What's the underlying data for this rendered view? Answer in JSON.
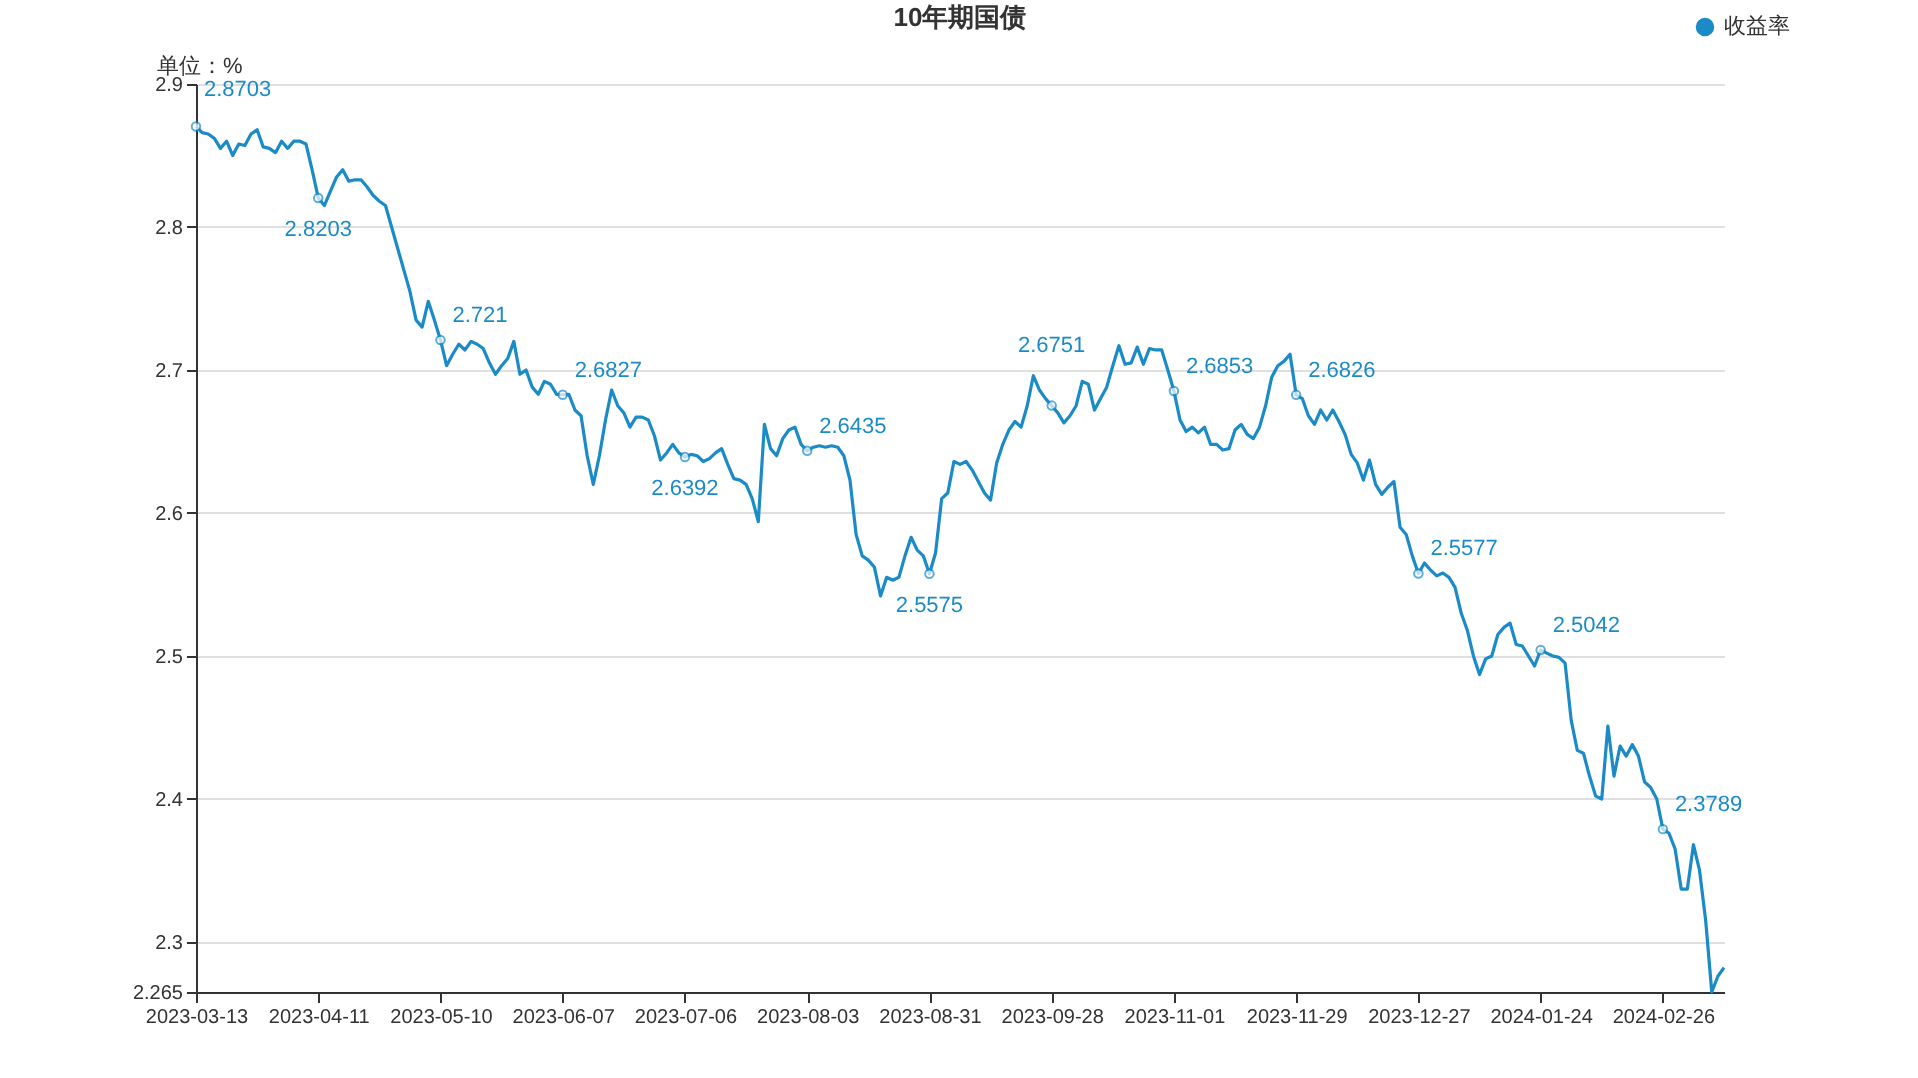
{
  "chart_data": {
    "type": "line",
    "title": "10年期国债",
    "ylabel": "单位：%",
    "categories": [
      "2023-03-13",
      null,
      null,
      null,
      null,
      null,
      null,
      null,
      null,
      null,
      null,
      null,
      null,
      null,
      null,
      null,
      null,
      null,
      null,
      null,
      "2023-04-11",
      null,
      null,
      null,
      null,
      null,
      null,
      null,
      null,
      null,
      null,
      null,
      null,
      null,
      null,
      null,
      null,
      null,
      null,
      null,
      "2023-05-10",
      null,
      null,
      null,
      null,
      null,
      null,
      null,
      null,
      null,
      null,
      null,
      null,
      null,
      null,
      null,
      null,
      null,
      null,
      null,
      "2023-06-07",
      null,
      null,
      null,
      null,
      null,
      null,
      null,
      null,
      null,
      null,
      null,
      null,
      null,
      null,
      null,
      null,
      null,
      null,
      null,
      "2023-07-06",
      null,
      null,
      null,
      null,
      null,
      null,
      null,
      null,
      null,
      null,
      null,
      null,
      null,
      null,
      null,
      null,
      null,
      null,
      null,
      "2023-08-03",
      null,
      null,
      null,
      null,
      null,
      null,
      null,
      null,
      null,
      null,
      null,
      null,
      null,
      null,
      null,
      null,
      null,
      null,
      null,
      "2023-08-31",
      null,
      null,
      null,
      null,
      null,
      null,
      null,
      null,
      null,
      null,
      null,
      null,
      null,
      null,
      null,
      null,
      null,
      null,
      null,
      "2023-09-28",
      null,
      null,
      null,
      null,
      null,
      null,
      null,
      null,
      null,
      null,
      null,
      null,
      null,
      null,
      null,
      null,
      null,
      null,
      null,
      "2023-11-01",
      null,
      null,
      null,
      null,
      null,
      null,
      null,
      null,
      null,
      null,
      null,
      null,
      null,
      null,
      null,
      null,
      null,
      null,
      null,
      "2023-11-29",
      null,
      null,
      null,
      null,
      null,
      null,
      null,
      null,
      null,
      null,
      null,
      null,
      null,
      null,
      null,
      null,
      null,
      null,
      null,
      "2023-12-27",
      null,
      null,
      null,
      null,
      null,
      null,
      null,
      null,
      null,
      null,
      null,
      null,
      null,
      null,
      null,
      null,
      null,
      null,
      null,
      "2024-01-24",
      null,
      null,
      null,
      null,
      null,
      null,
      null,
      null,
      null,
      null,
      null,
      null,
      null,
      null,
      null,
      null,
      null,
      null,
      null,
      "2024-02-26",
      null,
      null,
      null,
      null,
      null,
      null,
      null,
      null,
      null,
      null
    ],
    "series": [
      {
        "name": "收益率",
        "color": "#1a8bc6",
        "values": [
          2.8703,
          2.866,
          2.865,
          2.862,
          2.855,
          2.86,
          2.85,
          2.858,
          2.857,
          2.865,
          2.868,
          2.856,
          2.855,
          2.852,
          2.86,
          2.855,
          2.86,
          2.86,
          2.858,
          2.84,
          2.8203,
          2.815,
          2.825,
          2.835,
          2.84,
          2.832,
          2.833,
          2.833,
          2.828,
          2.822,
          2.818,
          2.815,
          2.8,
          2.785,
          2.77,
          2.755,
          2.735,
          2.73,
          2.748,
          2.735,
          2.721,
          2.703,
          2.711,
          2.718,
          2.714,
          2.72,
          2.718,
          2.715,
          2.705,
          2.697,
          2.703,
          2.708,
          2.72,
          2.697,
          2.7,
          2.688,
          2.683,
          2.692,
          2.69,
          2.683,
          2.6827,
          2.683,
          2.672,
          2.668,
          2.64,
          2.62,
          2.64,
          2.665,
          2.686,
          2.675,
          2.67,
          2.66,
          2.667,
          2.667,
          2.665,
          2.654,
          2.637,
          2.642,
          2.648,
          2.642,
          2.6392,
          2.641,
          2.64,
          2.636,
          2.638,
          2.642,
          2.645,
          2.634,
          2.624,
          2.623,
          2.62,
          2.61,
          2.594,
          2.662,
          2.645,
          2.64,
          2.652,
          2.658,
          2.66,
          2.648,
          2.6435,
          2.646,
          2.647,
          2.646,
          2.647,
          2.646,
          2.64,
          2.623,
          2.585,
          2.57,
          2.567,
          2.562,
          2.542,
          2.555,
          2.553,
          2.555,
          2.57,
          2.583,
          2.574,
          2.57,
          2.5575,
          2.572,
          2.61,
          2.614,
          2.636,
          2.634,
          2.636,
          2.63,
          2.622,
          2.614,
          2.609,
          2.635,
          2.648,
          2.658,
          2.664,
          2.66,
          2.675,
          2.696,
          2.686,
          2.68,
          2.6751,
          2.67,
          2.663,
          2.668,
          2.675,
          2.692,
          2.69,
          2.672,
          2.68,
          2.688,
          2.703,
          2.717,
          2.704,
          2.705,
          2.716,
          2.704,
          2.715,
          2.714,
          2.714,
          2.7,
          2.6853,
          2.665,
          2.657,
          2.66,
          2.656,
          2.66,
          2.648,
          2.648,
          2.644,
          2.645,
          2.658,
          2.662,
          2.655,
          2.652,
          2.66,
          2.675,
          2.695,
          2.703,
          2.706,
          2.711,
          2.6826,
          2.68,
          2.668,
          2.662,
          2.672,
          2.665,
          2.672,
          2.664,
          2.655,
          2.641,
          2.635,
          2.623,
          2.637,
          2.62,
          2.613,
          2.618,
          2.622,
          2.59,
          2.585,
          2.57,
          2.5577,
          2.565,
          2.56,
          2.556,
          2.558,
          2.555,
          2.548,
          2.53,
          2.518,
          2.5,
          2.487,
          2.498,
          2.5,
          2.515,
          2.52,
          2.523,
          2.508,
          2.507,
          2.5,
          2.493,
          2.5042,
          2.502,
          2.5,
          2.499,
          2.495,
          2.455,
          2.434,
          2.432,
          2.416,
          2.402,
          2.4,
          2.451,
          2.416,
          2.437,
          2.43,
          2.438,
          2.43,
          2.412,
          2.408,
          2.4,
          2.3789,
          2.376,
          2.365,
          2.337,
          2.337,
          2.368,
          2.35,
          2.315,
          2.265,
          2.276,
          2.282
        ],
        "value_labels": [
          "2.8703",
          null,
          null,
          null,
          null,
          null,
          null,
          null,
          null,
          null,
          null,
          null,
          null,
          null,
          null,
          null,
          null,
          null,
          null,
          null,
          "2.8203",
          null,
          null,
          null,
          null,
          null,
          null,
          null,
          null,
          null,
          null,
          null,
          null,
          null,
          null,
          null,
          null,
          null,
          null,
          null,
          "2.721",
          null,
          null,
          null,
          null,
          null,
          null,
          null,
          null,
          null,
          null,
          null,
          null,
          null,
          null,
          null,
          null,
          null,
          null,
          null,
          "2.6827",
          null,
          null,
          null,
          null,
          null,
          null,
          null,
          null,
          null,
          null,
          null,
          null,
          null,
          null,
          null,
          null,
          null,
          null,
          null,
          "2.6392",
          null,
          null,
          null,
          null,
          null,
          null,
          null,
          null,
          null,
          null,
          null,
          null,
          null,
          null,
          null,
          null,
          null,
          null,
          null,
          "2.6435",
          null,
          null,
          null,
          null,
          null,
          null,
          null,
          null,
          null,
          null,
          null,
          null,
          null,
          null,
          null,
          null,
          null,
          null,
          null,
          "2.5575",
          null,
          null,
          null,
          null,
          null,
          null,
          null,
          null,
          null,
          null,
          null,
          null,
          null,
          null,
          null,
          null,
          null,
          null,
          null,
          "2.6751",
          null,
          null,
          null,
          null,
          null,
          null,
          null,
          null,
          null,
          null,
          null,
          null,
          null,
          null,
          null,
          null,
          null,
          null,
          null,
          "2.6853",
          null,
          null,
          null,
          null,
          null,
          null,
          null,
          null,
          null,
          null,
          null,
          null,
          null,
          null,
          null,
          null,
          null,
          null,
          null,
          "2.6826",
          null,
          null,
          null,
          null,
          null,
          null,
          null,
          null,
          null,
          null,
          null,
          null,
          null,
          null,
          null,
          null,
          null,
          null,
          null,
          "2.5577",
          null,
          null,
          null,
          null,
          null,
          null,
          null,
          null,
          null,
          null,
          null,
          null,
          null,
          null,
          null,
          null,
          null,
          null,
          null,
          "2.5042",
          null,
          null,
          null,
          null,
          null,
          null,
          null,
          null,
          null,
          null,
          null,
          null,
          null,
          null,
          null,
          null,
          null,
          null,
          null,
          "2.3789",
          null,
          null,
          null,
          null,
          null,
          null,
          null,
          null,
          null,
          null
        ]
      }
    ],
    "ylim": [
      2.265,
      2.9
    ],
    "yticks": [
      {
        "value": 2.265,
        "label": "2.265"
      },
      2.3,
      2.4,
      2.5,
      2.6,
      2.7,
      2.8,
      2.9
    ],
    "grid": "y",
    "legend": "top right"
  }
}
